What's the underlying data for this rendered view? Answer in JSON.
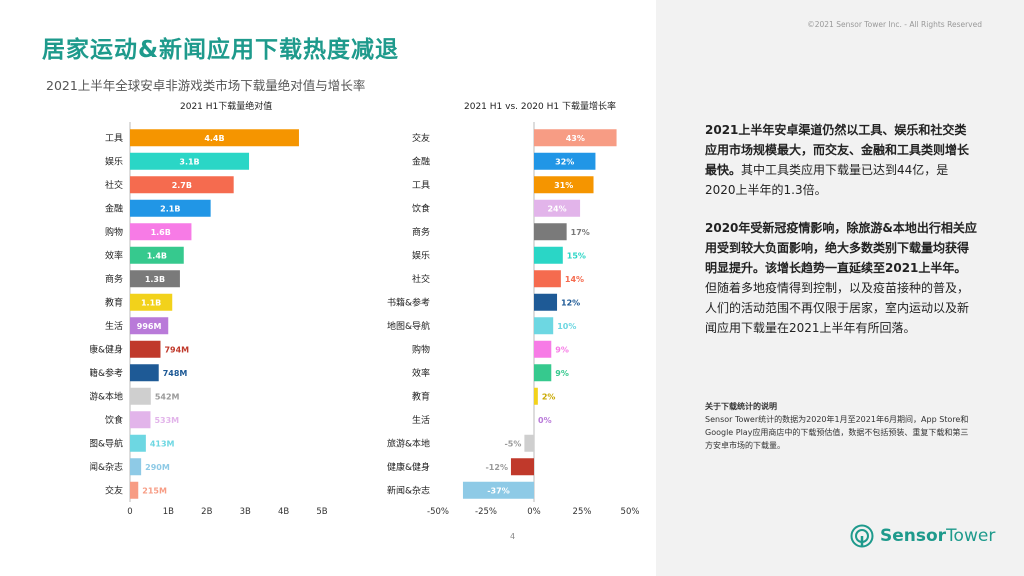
{
  "header": {
    "title": "居家运动&新闻应用下载热度减退",
    "subtitle": "2021上半年全球安卓非游戏类市场下载量绝对值与增长率",
    "copyright": "©2021 Sensor Tower Inc. - All Rights Reserved"
  },
  "chart_data": [
    {
      "type": "bar",
      "orientation": "horizontal",
      "title": "2021 H1下载量绝对值",
      "categories": [
        "工具",
        "娱乐",
        "社交",
        "金融",
        "购物",
        "效率",
        "商务",
        "教育",
        "生活",
        "健康&健身",
        "书籍&参考",
        "旅游&本地",
        "饮食",
        "地图&导航",
        "新闻&杂志",
        "交友"
      ],
      "values": [
        4.4,
        3.1,
        2.7,
        2.1,
        1.6,
        1.4,
        1.3,
        1.1,
        0.996,
        0.794,
        0.748,
        0.542,
        0.533,
        0.413,
        0.29,
        0.215
      ],
      "value_labels": [
        "4.4B",
        "3.1B",
        "2.7B",
        "2.1B",
        "1.6B",
        "1.4B",
        "1.3B",
        "1.1B",
        "996M",
        "794M",
        "748M",
        "542M",
        "533M",
        "413M",
        "290M",
        "215M"
      ],
      "colors": [
        "#f59500",
        "#2ad6c6",
        "#f56b4f",
        "#2196e6",
        "#f77be6",
        "#36c98e",
        "#7a7a7a",
        "#f2d21b",
        "#b97ad9",
        "#c0392b",
        "#1e5a96",
        "#cfcfcf",
        "#e2b4ea",
        "#6dd7e2",
        "#8ecae6",
        "#f79c84"
      ],
      "xlim": [
        0,
        5
      ],
      "xticks": [
        "0",
        "1B",
        "2B",
        "3B",
        "4B",
        "5B"
      ]
    },
    {
      "type": "bar",
      "orientation": "horizontal",
      "title": "2021 H1 vs. 2020 H1 下载量增长率",
      "categories": [
        "交友",
        "金融",
        "工具",
        "饮食",
        "商务",
        "娱乐",
        "社交",
        "书籍&参考",
        "地图&导航",
        "购物",
        "效率",
        "教育",
        "生活",
        "旅游&本地",
        "健康&健身",
        "新闻&杂志"
      ],
      "values": [
        43,
        32,
        31,
        24,
        17,
        15,
        14,
        12,
        10,
        9,
        9,
        2,
        0,
        -5,
        -12,
        -37
      ],
      "value_labels": [
        "43%",
        "32%",
        "31%",
        "24%",
        "17%",
        "15%",
        "14%",
        "12%",
        "10%",
        "9%",
        "9%",
        "2%",
        "0%",
        "-5%",
        "-12%",
        "-37%"
      ],
      "colors": [
        "#f79c84",
        "#2196e6",
        "#f59500",
        "#e2b4ea",
        "#7a7a7a",
        "#2ad6c6",
        "#f56b4f",
        "#1e5a96",
        "#6dd7e2",
        "#f77be6",
        "#36c98e",
        "#f2d21b",
        "#b97ad9",
        "#cfcfcf",
        "#c0392b",
        "#8ecae6"
      ],
      "xlim": [
        -50,
        50
      ],
      "xticks": [
        "-50%",
        "-25%",
        "0%",
        "25%",
        "50%"
      ]
    }
  ],
  "page_number": "4",
  "analysis": {
    "p1_bold": "2021上半年安卓渠道仍然以工具、娱乐和社交类应用市场规模最大，而交友、金融和工具类则增长最快。",
    "p1_rest": "其中工具类应用下载量已达到44亿，是2020上半年的1.3倍。",
    "p2_bold": "2020年受新冠疫情影响，除旅游&本地出行相关应用受到较大负面影响，绝大多数类别下载量均获得明显提升。该增长趋势一直延续至2021上半年。",
    "p2_rest": "但随着多地疫情得到控制，以及疫苗接种的普及，人们的活动范围不再仅限于居家，室内运动以及新闻应用下载量在2021上半年有所回落。"
  },
  "notes": {
    "title": "关于下载统计的说明",
    "body": "Sensor Tower统计的数据为2020年1月至2021年6月期间，App Store和Google Play应用商店中的下载预估值，数据不包括预装、重复下载和第三方安卓市场的下载量。"
  },
  "logo": {
    "name_part1": "Sensor",
    "name_part2": "Tower"
  },
  "colors": {
    "brand": "#1e9a8c",
    "sidebar": "#f2f2f2"
  }
}
